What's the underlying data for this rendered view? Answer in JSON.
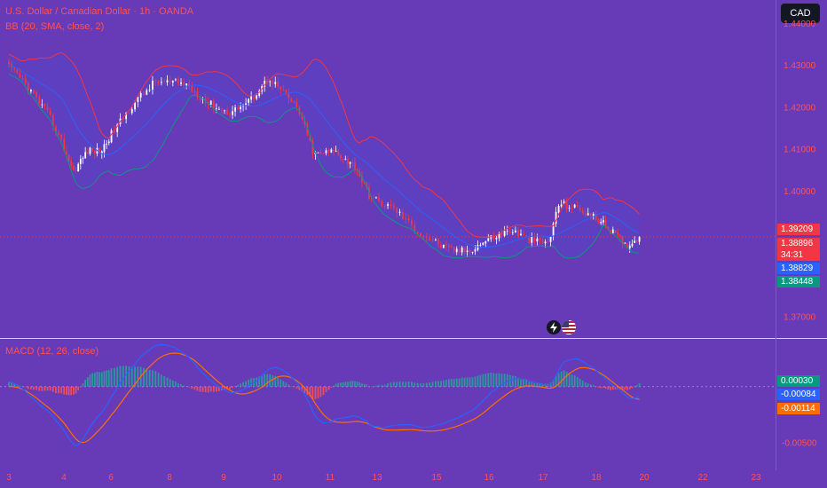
{
  "chart_title": "U.S. Dollar / Canadian Dollar · 1h · OANDA",
  "bb_label": "BB (20, SMA, close, 2)",
  "macd_label": "MACD (12, 26, close)",
  "currency_button": "CAD",
  "countdown": "34:31",
  "colors": {
    "background": "#673ab7",
    "bull_candle": "#ffffff",
    "bear_candle": "#f23645",
    "bb_upper": "#f23645",
    "bb_lower": "#089981",
    "bb_basis": "#2962ff",
    "macd_line": "#2962ff",
    "signal_line": "#ff6d00",
    "hist_positive": "#26a69a",
    "hist_negative": "#ff5252",
    "axis_text": "#ff5252"
  },
  "price_labels": {
    "bb_upper": {
      "value": "1.39209",
      "color": "#f23645"
    },
    "last_price": {
      "value": "1.38896",
      "color": "#f23645"
    },
    "bb_basis": {
      "value": "1.38829",
      "color": "#2962ff"
    },
    "bb_lower": {
      "value": "1.38448",
      "color": "#089981"
    },
    "histogram": {
      "value": "0.00030",
      "color": "#089981"
    },
    "macd": {
      "value": "-0.00084",
      "color": "#2962ff"
    },
    "signal": {
      "value": "-0.00114",
      "color": "#ff6d00"
    }
  },
  "chart_data": [
    {
      "type": "candlestick",
      "title": "U.S. Dollar / Canadian Dollar · 1h · OANDA",
      "y_ticks": [
        "1.44000",
        "1.43000",
        "1.42000",
        "1.41000",
        "1.40000",
        "1.37000"
      ],
      "ylim": [
        1.365,
        1.4455
      ],
      "x_ticks": [
        "3",
        "4",
        "6",
        "8",
        "9",
        "10",
        "11",
        "13",
        "15",
        "16",
        "17",
        "18",
        "20",
        "22",
        "23"
      ],
      "price_anchors": [
        {
          "d": 0,
          "p": 1.4295
        },
        {
          "d": 0.3,
          "p": 1.4255
        },
        {
          "d": 0.75,
          "p": 1.4175
        },
        {
          "d": 1.2,
          "p": 1.4045
        },
        {
          "d": 1.5,
          "p": 1.4095
        },
        {
          "d": 1.8,
          "p": 1.4095
        },
        {
          "d": 2.4,
          "p": 1.421
        },
        {
          "d": 2.75,
          "p": 1.426
        },
        {
          "d": 3.3,
          "p": 1.4255
        },
        {
          "d": 3.7,
          "p": 1.421
        },
        {
          "d": 4.1,
          "p": 1.4185
        },
        {
          "d": 4.5,
          "p": 1.4215
        },
        {
          "d": 4.85,
          "p": 1.427
        },
        {
          "d": 5.4,
          "p": 1.4195
        },
        {
          "d": 5.7,
          "p": 1.4085
        },
        {
          "d": 6.1,
          "p": 1.4095
        },
        {
          "d": 6.55,
          "p": 1.4055
        },
        {
          "d": 6.85,
          "p": 1.3985
        },
        {
          "d": 7.3,
          "p": 1.3955
        },
        {
          "d": 7.7,
          "p": 1.39
        },
        {
          "d": 8.2,
          "p": 1.386
        },
        {
          "d": 8.6,
          "p": 1.3855
        },
        {
          "d": 9.0,
          "p": 1.3885
        },
        {
          "d": 9.4,
          "p": 1.3905
        },
        {
          "d": 9.8,
          "p": 1.388
        },
        {
          "d": 10.1,
          "p": 1.3875
        },
        {
          "d": 10.3,
          "p": 1.397
        },
        {
          "d": 10.7,
          "p": 1.3955
        },
        {
          "d": 11.1,
          "p": 1.3925
        },
        {
          "d": 11.35,
          "p": 1.39
        },
        {
          "d": 11.6,
          "p": 1.387
        },
        {
          "d": 11.75,
          "p": 1.3875
        },
        {
          "d": 11.9,
          "p": 1.389
        }
      ],
      "series": [
        {
          "name": "Bollinger Bands (20, SMA, close, 2)",
          "values_note": "computed from candles"
        }
      ]
    },
    {
      "type": "line",
      "title": "MACD (12, 26, close)",
      "y_ticks": [
        "-0.00500"
      ],
      "ylim": [
        -0.0067,
        0.0042
      ],
      "series": [
        {
          "name": "MACD"
        },
        {
          "name": "Signal"
        },
        {
          "name": "Histogram"
        }
      ],
      "last_values": {
        "histogram": 0.0003,
        "macd": -0.00084,
        "signal": -0.00114
      }
    }
  ]
}
